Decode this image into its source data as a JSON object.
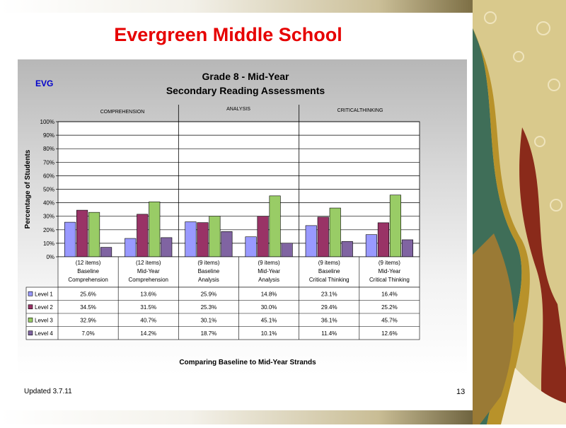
{
  "slide_title": "Evergreen Middle School",
  "footer": {
    "updated": "Updated  3.7.11",
    "page_number": "13"
  },
  "chart_data": {
    "type": "bar",
    "tag": "EVG",
    "title": "Grade 8 - Mid-Year",
    "subtitle": "Secondary Reading Assessments",
    "section_labels": [
      "COMPREHENSION",
      "ANALYSIS",
      "CRITICALTHINKING"
    ],
    "ylabel": "Percentage of Students",
    "xlabel": "Comparing Baseline to Mid-Year Strands",
    "ylim": [
      0,
      100
    ],
    "yticks": [
      "0%",
      "10%",
      "20%",
      "30%",
      "40%",
      "50%",
      "60%",
      "70%",
      "80%",
      "90%",
      "100%"
    ],
    "grid": true,
    "legend": "data table",
    "categories": [
      [
        "(12 items)",
        "Baseline",
        "Comprehension"
      ],
      [
        "(12 items)",
        "Mid-Year",
        "Comprehension"
      ],
      [
        "(9 items)",
        "Baseline",
        "Analysis"
      ],
      [
        "(9 items)",
        "Mid-Year",
        "Analysis"
      ],
      [
        "(9 items)",
        "Baseline",
        "Critical Thinking"
      ],
      [
        "(9 items)",
        "Mid-Year",
        "Critical Thinking"
      ]
    ],
    "series": [
      {
        "name": "Level 1",
        "color": "#9999ff",
        "values": [
          25.6,
          13.6,
          25.9,
          14.8,
          23.1,
          16.4
        ],
        "labels": [
          "25.6%",
          "13.6%",
          "25.9%",
          "14.8%",
          "23.1%",
          "16.4%"
        ]
      },
      {
        "name": "Level 2",
        "color": "#993366",
        "values": [
          34.5,
          31.5,
          25.3,
          30.0,
          29.4,
          25.2
        ],
        "labels": [
          "34.5%",
          "31.5%",
          "25.3%",
          "30.0%",
          "29.4%",
          "25.2%"
        ]
      },
      {
        "name": "Level 3",
        "color": "#99cc66",
        "values": [
          32.9,
          40.7,
          30.1,
          45.1,
          36.1,
          45.7
        ],
        "labels": [
          "32.9%",
          "40.7%",
          "30.1%",
          "45.1%",
          "36.1%",
          "45.7%"
        ]
      },
      {
        "name": "Level 4",
        "color": "#8064a2",
        "values": [
          7.0,
          14.2,
          18.7,
          10.1,
          11.4,
          12.6
        ],
        "labels": [
          "7.0%",
          "14.2%",
          "18.7%",
          "10.1%",
          "11.4%",
          "12.6%"
        ]
      }
    ]
  }
}
